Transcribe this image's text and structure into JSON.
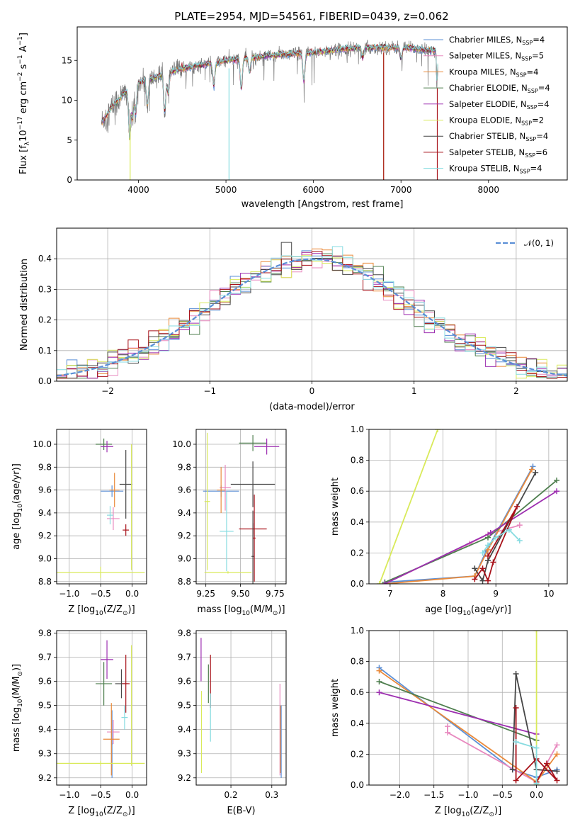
{
  "figure": {
    "title": "PLATE=2954, MJD=54561, FIBERID=0439, z=0.062"
  },
  "colors": {
    "Chabrier MILES": "#5b8fd6",
    "Salpeter MILES": "#e889bf",
    "Kroupa MILES": "#ea8a3a",
    "Chabrier ELODIE": "#4f7f4f",
    "Salpeter ELODIE": "#9d2fb0",
    "Kroupa ELODIE": "#d9ea5a",
    "Chabrier STELIB": "#464646",
    "Salpeter STELIB": "#a8121a",
    "Kroupa STELIB": "#86dbe0",
    "normal": "#5b8fd6"
  },
  "chart_data": [
    {
      "id": "spectrum",
      "type": "line",
      "xlabel": "wavelength [Angstrom, rest frame]",
      "ylabel": "Flux [f",
      "ylabel_sub": "λ",
      "ylabel_mid": "10",
      "ylabel_sup1": "−17",
      "ylabel_mid2": " erg cm",
      "ylabel_sup2": "−2",
      "ylabel_mid3": " s",
      "ylabel_sup3": "−1",
      "ylabel_mid4": " A",
      "ylabel_sup4": "−1",
      "ylabel_end": "]",
      "xlim": [
        3300,
        8900
      ],
      "ylim": [
        0,
        19.2
      ],
      "xticks": [
        4000,
        5000,
        6000,
        7000,
        8000
      ],
      "yticks": [
        0,
        5,
        10,
        15
      ],
      "legend": [
        {
          "name": "Chabrier MILES",
          "nssp": "4"
        },
        {
          "name": "Salpeter MILES",
          "nssp": "5"
        },
        {
          "name": "Kroupa MILES",
          "nssp": "4"
        },
        {
          "name": "Chabrier ELODIE",
          "nssp": "4"
        },
        {
          "name": "Salpeter ELODIE",
          "nssp": "4"
        },
        {
          "name": "Kroupa ELODIE",
          "nssp": "2"
        },
        {
          "name": "Chabrier STELIB",
          "nssp": "4"
        },
        {
          "name": "Salpeter STELIB",
          "nssp": "6"
        },
        {
          "name": "Kroupa STELIB",
          "nssp": "4"
        }
      ],
      "legend_prefix": "N",
      "legend_sub": "SSP",
      "legend_placement": "right",
      "continuum": [
        [
          3580,
          7.2
        ],
        [
          3700,
          9.2
        ],
        [
          3850,
          11.0
        ],
        [
          4000,
          12.2
        ],
        [
          4200,
          12.9
        ],
        [
          4500,
          14.0
        ],
        [
          5000,
          15.0
        ],
        [
          5500,
          15.6
        ],
        [
          6000,
          16.0
        ],
        [
          6500,
          16.6
        ],
        [
          7000,
          16.6
        ],
        [
          7400,
          16.2
        ],
        [
          7410,
          11.5
        ],
        [
          7420,
          14.3
        ]
      ],
      "dips": [
        {
          "x": 3900,
          "depth": 0.55
        },
        {
          "x": 3933,
          "depth": 0.35
        },
        {
          "x": 3968,
          "depth": 0.3
        },
        {
          "x": 4102,
          "depth": 0.25
        },
        {
          "x": 4300,
          "depth": 0.35
        },
        {
          "x": 4340,
          "depth": 0.2
        },
        {
          "x": 4861,
          "depth": 0.2
        },
        {
          "x": 5175,
          "depth": 0.25
        },
        {
          "x": 5270,
          "depth": 0.12
        },
        {
          "x": 5890,
          "depth": 0.22
        },
        {
          "x": 6563,
          "depth": 0.08
        },
        {
          "x": 7000,
          "depth": 0.08
        }
      ],
      "spikes": [
        {
          "x": 3905,
          "ymin": 0,
          "ymax": 7,
          "series": "Kroupa ELODIE"
        },
        {
          "x": 5035,
          "ymin": 0,
          "ymax": 14,
          "series": "Kroupa STELIB"
        },
        {
          "x": 6800,
          "ymin": 0,
          "ymax": 16,
          "series": "Kroupa ELODIE"
        },
        {
          "x": 6802,
          "ymin": 0,
          "ymax": 16,
          "series": "Salpeter STELIB"
        },
        {
          "x": 7415,
          "ymin": 0,
          "ymax": 11.5,
          "series": "Salpeter STELIB"
        }
      ]
    },
    {
      "id": "residual-hist",
      "type": "histogram",
      "xlabel": "(data-model)/error",
      "ylabel": "Normed distribution",
      "xlim": [
        -2.5,
        2.5
      ],
      "ylim": [
        0,
        0.5
      ],
      "xticks": [
        -2,
        -1,
        0,
        1,
        2
      ],
      "yticks": [
        0,
        0.1,
        0.2,
        0.3,
        0.4
      ],
      "bin_width": 0.1,
      "legend": "𝒩(0, 1)",
      "legend_placement": "top-right",
      "sigma": 1.0
    },
    {
      "id": "age-vs-Z",
      "type": "errorbar",
      "xlabel": "Z [log",
      "xlabel_sub": "10",
      "xlabel_end": "(Z/Z",
      "xlabel_sun": "⊙",
      "xlabel_close": ")]",
      "ylabel": "age  [log",
      "ylabel_sub": "10",
      "ylabel_end": "(age/yr)]",
      "xlim": [
        -1.2,
        0.23
      ],
      "ylim": [
        8.78,
        10.13
      ],
      "xticks": [
        -1.0,
        -0.5,
        0.0
      ],
      "yticks": [
        8.8,
        9.0,
        9.2,
        9.4,
        9.6,
        9.8,
        10.0
      ],
      "points": [
        {
          "series": "Chabrier MILES",
          "x": -0.32,
          "xerr": 0.18,
          "y": 9.59,
          "yerr": 0.05
        },
        {
          "series": "Salpeter MILES",
          "x": -0.3,
          "xerr": 0.1,
          "y": 9.35,
          "yerr": 0.1
        },
        {
          "series": "Kroupa MILES",
          "x": -0.28,
          "xerr": 0.08,
          "y": 9.6,
          "yerr": 0.15
        },
        {
          "series": "Chabrier ELODIE",
          "x": -0.45,
          "xerr": 0.13,
          "y": 10.0,
          "yerr": 0.05
        },
        {
          "series": "Salpeter ELODIE",
          "x": -0.4,
          "xerr": 0.1,
          "y": 9.98,
          "yerr": 0.05
        },
        {
          "series": "Kroupa ELODIE",
          "x": -0.5,
          "xerr": 0.7,
          "y": 8.88,
          "yerr": 0.05
        },
        {
          "series": "Chabrier STELIB",
          "x": -0.1,
          "xerr": 0.1,
          "y": 9.65,
          "yerr": 0.3
        },
        {
          "series": "Salpeter STELIB",
          "x": -0.1,
          "xerr": 0.05,
          "y": 9.25,
          "yerr": 0.05
        },
        {
          "series": "Kroupa STELIB",
          "x": -0.35,
          "xerr": 0.05,
          "y": 9.38,
          "yerr": 0.08
        },
        {
          "series": "Kroupa ELODIE",
          "x": -0.01,
          "xerr": 0.01,
          "y": 9.45,
          "yerr": 0.55
        }
      ]
    },
    {
      "id": "age-vs-mass",
      "type": "errorbar",
      "xlabel": "mass [log",
      "xlabel_sub": "10",
      "xlabel_end": "(M/M",
      "xlabel_sun": "⊙",
      "xlabel_close": ")]",
      "xlim": [
        9.18,
        9.83
      ],
      "ylim": [
        8.78,
        10.13
      ],
      "xticks": [
        9.25,
        9.5,
        9.75
      ],
      "yticks": [
        8.8,
        9.0,
        9.2,
        9.4,
        9.6,
        9.8,
        10.0
      ],
      "points": [
        {
          "series": "Chabrier MILES",
          "x": 9.36,
          "xerr": 0.13,
          "y": 9.59,
          "yerr": 0.05
        },
        {
          "series": "Salpeter MILES",
          "x": 9.39,
          "xerr": 0.04,
          "y": 9.62,
          "yerr": 0.2
        },
        {
          "series": "Kroupa MILES",
          "x": 9.36,
          "xerr": 0.03,
          "y": 9.6,
          "yerr": 0.2
        },
        {
          "series": "Chabrier ELODIE",
          "x": 9.59,
          "xerr": 0.1,
          "y": 10.01,
          "yerr": 0.07
        },
        {
          "series": "Salpeter ELODIE",
          "x": 9.69,
          "xerr": 0.09,
          "y": 9.98,
          "yerr": 0.07
        },
        {
          "series": "Kroupa ELODIE",
          "x": 9.26,
          "xerr": 0.02,
          "y": 9.5,
          "yerr": 0.6
        },
        {
          "series": "Chabrier STELIB",
          "x": 9.59,
          "xerr": 0.16,
          "y": 9.65,
          "yerr": 0.2
        },
        {
          "series": "Salpeter STELIB",
          "x": 9.59,
          "xerr": 0.1,
          "y": 9.26,
          "yerr": 0.05
        },
        {
          "series": "Kroupa STELIB",
          "x": 9.4,
          "xerr": 0.05,
          "y": 9.24,
          "yerr": 0.35
        },
        {
          "series": "Kroupa ELODIE",
          "x": 9.41,
          "xerr": 0.17,
          "y": 8.88,
          "yerr": 0.01
        },
        {
          "series": "Chabrier STELIB",
          "x": 9.59,
          "xerr": 0.01,
          "y": 9.02,
          "yerr": 0.4
        },
        {
          "series": "Salpeter STELIB",
          "x": 9.6,
          "xerr": 0.01,
          "y": 9.18,
          "yerr": 0.38
        }
      ]
    },
    {
      "id": "weight-vs-age",
      "type": "line",
      "xlabel": "age  [log",
      "xlabel_sub": "10",
      "xlabel_end": "(age/yr)]",
      "ylabel": "mass weight",
      "xlim": [
        6.6,
        10.35
      ],
      "ylim": [
        0,
        1.0
      ],
      "xticks": [
        7,
        8,
        9,
        10
      ],
      "yticks": [
        0.0,
        0.2,
        0.4,
        0.6,
        0.8,
        1.0
      ],
      "series": [
        {
          "name": "Chabrier MILES",
          "points": [
            [
              6.9,
              0.01
            ],
            [
              8.6,
              0.05
            ],
            [
              8.8,
              0.2
            ],
            [
              9.7,
              0.76
            ]
          ]
        },
        {
          "name": "Salpeter MILES",
          "points": [
            [
              6.9,
              0.0
            ],
            [
              8.5,
              0.26
            ],
            [
              8.85,
              0.32
            ],
            [
              9.45,
              0.38
            ]
          ]
        },
        {
          "name": "Kroupa MILES",
          "points": [
            [
              6.9,
              0.0
            ],
            [
              8.6,
              0.05
            ],
            [
              8.85,
              0.22
            ],
            [
              9.68,
              0.74
            ]
          ]
        },
        {
          "name": "Chabrier ELODIE",
          "points": [
            [
              6.9,
              0.01
            ],
            [
              8.85,
              0.3
            ],
            [
              10.15,
              0.67
            ]
          ]
        },
        {
          "name": "Salpeter ELODIE",
          "points": [
            [
              6.9,
              0.0
            ],
            [
              8.9,
              0.33
            ],
            [
              10.15,
              0.6
            ]
          ]
        },
        {
          "name": "Kroupa ELODIE",
          "points": [
            [
              6.8,
              0.0
            ],
            [
              7.9,
              1.0
            ]
          ]
        },
        {
          "name": "Chabrier STELIB",
          "points": [
            [
              8.6,
              0.1
            ],
            [
              8.75,
              0.02
            ],
            [
              8.85,
              0.15
            ],
            [
              9.75,
              0.72
            ]
          ]
        },
        {
          "name": "Salpeter STELIB",
          "points": [
            [
              8.6,
              0.03
            ],
            [
              8.75,
              0.1
            ],
            [
              8.85,
              0.02
            ],
            [
              8.95,
              0.14
            ],
            [
              9.4,
              0.5
            ],
            [
              8.85,
              0.18
            ]
          ]
        },
        {
          "name": "Kroupa STELIB",
          "points": [
            [
              8.75,
              0.2
            ],
            [
              8.85,
              0.25
            ],
            [
              9.0,
              0.3
            ],
            [
              9.25,
              0.35
            ],
            [
              9.45,
              0.28
            ]
          ]
        }
      ]
    },
    {
      "id": "mass-vs-Z",
      "type": "errorbar",
      "xlabel": "Z [log",
      "xlabel_sub": "10",
      "xlabel_end": "(Z/Z",
      "xlabel_sun": "⊙",
      "xlabel_close": ")]",
      "ylabel": "mass [log",
      "ylabel_sub": "10",
      "ylabel_end": "(M/M",
      "ylabel_sun": "⊙",
      "ylabel_close": ")]",
      "xlim": [
        -1.2,
        0.23
      ],
      "ylim": [
        9.17,
        9.81
      ],
      "xticks": [
        -1.0,
        -0.5,
        0.0
      ],
      "yticks": [
        9.2,
        9.3,
        9.4,
        9.5,
        9.6,
        9.7,
        9.8
      ],
      "points": [
        {
          "series": "Chabrier MILES",
          "x": -0.32,
          "xerr": 0.01,
          "y": 9.34,
          "yerr": 0.14
        },
        {
          "series": "Salpeter MILES",
          "x": -0.3,
          "xerr": 0.1,
          "y": 9.39,
          "yerr": 0.05
        },
        {
          "series": "Kroupa MILES",
          "x": -0.33,
          "xerr": 0.13,
          "y": 9.36,
          "yerr": 0.15
        },
        {
          "series": "Chabrier ELODIE",
          "x": -0.45,
          "xerr": 0.13,
          "y": 9.59,
          "yerr": 0.09
        },
        {
          "series": "Salpeter ELODIE",
          "x": -0.4,
          "xerr": 0.1,
          "y": 9.69,
          "yerr": 0.08
        },
        {
          "series": "Kroupa ELODIE",
          "x": -0.5,
          "xerr": 0.7,
          "y": 9.26,
          "yerr": 0.01
        },
        {
          "series": "Chabrier STELIB",
          "x": -0.17,
          "xerr": 0.1,
          "y": 9.59,
          "yerr": 0.06
        },
        {
          "series": "Salpeter STELIB",
          "x": -0.1,
          "xerr": 0.06,
          "y": 9.59,
          "yerr": 0.12
        },
        {
          "series": "Kroupa STELIB",
          "x": -0.12,
          "xerr": 0.05,
          "y": 9.45,
          "yerr": 0.05
        },
        {
          "series": "Kroupa ELODIE",
          "x": -0.01,
          "xerr": 0.01,
          "y": 9.5,
          "yerr": 0.25
        }
      ]
    },
    {
      "id": "mass-vs-EBV",
      "type": "errorbar",
      "xlabel": "E(B-V)",
      "xlim": [
        0.115,
        0.335
      ],
      "ylim": [
        9.17,
        9.81
      ],
      "xticks": [
        0.2,
        0.3
      ],
      "yticks": [
        9.2,
        9.3,
        9.4,
        9.5,
        9.6,
        9.7,
        9.8
      ],
      "points": [
        {
          "series": "Salpeter ELODIE",
          "x": 0.127,
          "xerr": 0,
          "y": 9.69,
          "yerr": 0.09
        },
        {
          "series": "Kroupa ELODIE",
          "x": 0.128,
          "xerr": 0,
          "y": 9.39,
          "yerr": 0.17
        },
        {
          "series": "Chabrier ELODIE",
          "x": 0.145,
          "xerr": 0,
          "y": 9.59,
          "yerr": 0.08
        },
        {
          "series": "Salpeter STELIB",
          "x": 0.15,
          "xerr": 0,
          "y": 9.6,
          "yerr": 0.11
        },
        {
          "series": "Kroupa STELIB",
          "x": 0.15,
          "xerr": 0,
          "y": 9.45,
          "yerr": 0.1
        },
        {
          "series": "Salpeter MILES",
          "x": 0.32,
          "xerr": 0,
          "y": 9.4,
          "yerr": 0.19
        },
        {
          "series": "Kroupa MILES",
          "x": 0.321,
          "xerr": 0,
          "y": 9.36,
          "yerr": 0.14
        },
        {
          "series": "Chabrier MILES",
          "x": 0.323,
          "xerr": 0,
          "y": 9.35,
          "yerr": 0.15
        }
      ]
    },
    {
      "id": "weight-vs-Z",
      "type": "line",
      "xlabel": "Z [log",
      "xlabel_sub": "10",
      "xlabel_end": "(Z/Z",
      "xlabel_sun": "⊙",
      "xlabel_close": ")]",
      "ylabel": "mass weight",
      "xlim": [
        -2.45,
        0.45
      ],
      "ylim": [
        0,
        1.0
      ],
      "xticks": [
        -2.0,
        -1.5,
        -1.0,
        -0.5,
        0.0
      ],
      "yticks": [
        0.0,
        0.2,
        0.4,
        0.6,
        0.8,
        1.0
      ],
      "series": [
        {
          "name": "Chabrier MILES",
          "points": [
            [
              -2.3,
              0.76
            ],
            [
              -0.35,
              0.1
            ],
            [
              0.0,
              0.05
            ],
            [
              0.3,
              0.1
            ]
          ]
        },
        {
          "name": "Salpeter MILES",
          "points": [
            [
              -1.3,
              0.38
            ],
            [
              -1.3,
              0.34
            ],
            [
              0.0,
              0.02
            ],
            [
              0.3,
              0.26
            ]
          ]
        },
        {
          "name": "Kroupa MILES",
          "points": [
            [
              -2.3,
              0.74
            ],
            [
              0.0,
              0.02
            ],
            [
              0.3,
              0.2
            ]
          ]
        },
        {
          "name": "Chabrier ELODIE",
          "points": [
            [
              -2.3,
              0.67
            ],
            [
              0.0,
              0.29
            ]
          ]
        },
        {
          "name": "Salpeter ELODIE",
          "points": [
            [
              -2.3,
              0.6
            ],
            [
              0.0,
              0.33
            ]
          ]
        },
        {
          "name": "Kroupa ELODIE",
          "points": [
            [
              0.0,
              0.0
            ],
            [
              0.0,
              1.0
            ]
          ]
        },
        {
          "name": "Chabrier STELIB",
          "points": [
            [
              -0.35,
              0.1
            ],
            [
              -0.3,
              0.72
            ],
            [
              0.0,
              0.1
            ],
            [
              0.3,
              0.09
            ]
          ]
        },
        {
          "name": "Salpeter STELIB",
          "points": [
            [
              -0.3,
              0.5
            ],
            [
              -0.3,
              0.03
            ],
            [
              0.0,
              0.17
            ],
            [
              0.3,
              0.03
            ],
            [
              0.15,
              0.14
            ],
            [
              0.0,
              0.02
            ]
          ]
        },
        {
          "name": "Kroupa STELIB",
          "points": [
            [
              -0.3,
              0.28
            ],
            [
              0.0,
              0.24
            ],
            [
              0.0,
              0.01
            ]
          ]
        }
      ]
    }
  ]
}
